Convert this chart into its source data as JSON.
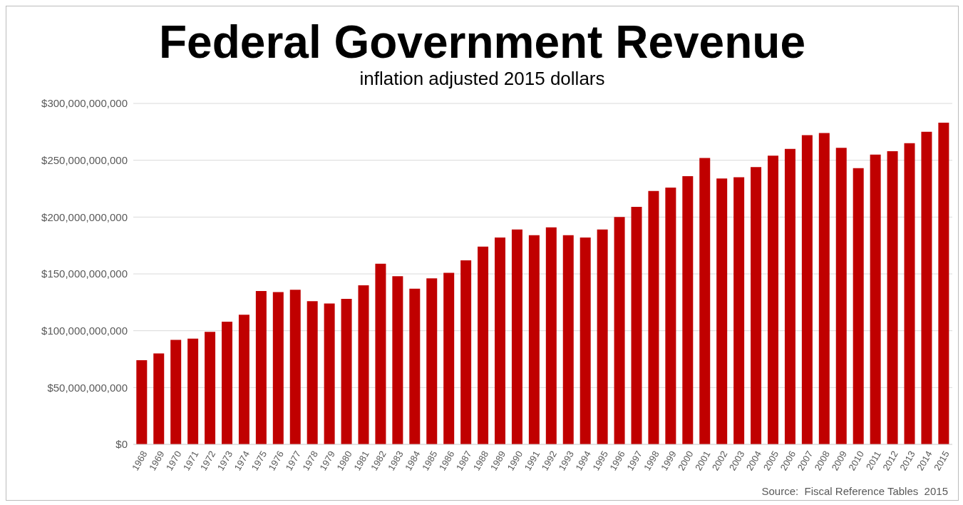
{
  "chart_data": {
    "type": "bar",
    "title": "Federal Government Revenue",
    "subtitle": "inflation adjusted 2015 dollars",
    "categories": [
      "1968",
      "1969",
      "1970",
      "1971",
      "1972",
      "1973",
      "1974",
      "1975",
      "1976",
      "1977",
      "1978",
      "1979",
      "1980",
      "1981",
      "1982",
      "1983",
      "1984",
      "1985",
      "1986",
      "1987",
      "1988",
      "1989",
      "1990",
      "1991",
      "1992",
      "1993",
      "1994",
      "1995",
      "1996",
      "1997",
      "1998",
      "1999",
      "2000",
      "2001",
      "2002",
      "2003",
      "2004",
      "2005",
      "2006",
      "2007",
      "2008",
      "2009",
      "2010",
      "2011",
      "2012",
      "2013",
      "2014",
      "2015"
    ],
    "values": [
      74000000000,
      80000000000,
      92000000000,
      93000000000,
      99000000000,
      108000000000,
      114000000000,
      135000000000,
      134000000000,
      136000000000,
      126000000000,
      124000000000,
      128000000000,
      140000000000,
      159000000000,
      148000000000,
      137000000000,
      146000000000,
      151000000000,
      162000000000,
      174000000000,
      182000000000,
      189000000000,
      184000000000,
      191000000000,
      184000000000,
      182000000000,
      189000000000,
      200000000000,
      209000000000,
      223000000000,
      226000000000,
      236000000000,
      252000000000,
      234000000000,
      235000000000,
      244000000000,
      254000000000,
      260000000000,
      272000000000,
      274000000000,
      261000000000,
      243000000000,
      255000000000,
      258000000000,
      265000000000,
      275000000000,
      283000000000
    ],
    "color": "#c00000",
    "ylim": [
      0,
      300000000000
    ],
    "yticks": [
      {
        "value": 0,
        "label": "$0"
      },
      {
        "value": 50000000000,
        "label": "$50,000,000,000"
      },
      {
        "value": 100000000000,
        "label": "$100,000,000,000"
      },
      {
        "value": 150000000000,
        "label": "$150,000,000,000"
      },
      {
        "value": 200000000000,
        "label": "$200,000,000,000"
      },
      {
        "value": 250000000000,
        "label": "$250,000,000,000"
      },
      {
        "value": 300000000000,
        "label": "$300,000,000,000"
      }
    ],
    "grid": "y",
    "legend": false,
    "annotations": [
      "Source:  Fiscal Reference Tables  2015"
    ]
  }
}
